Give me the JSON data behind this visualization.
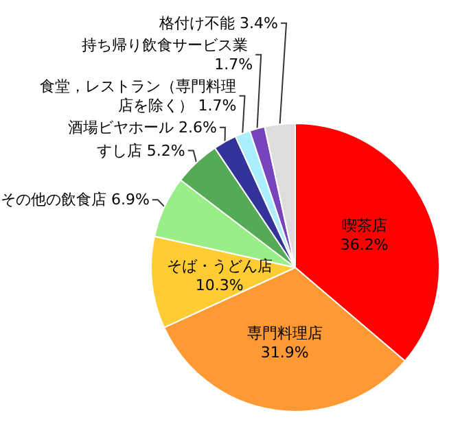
{
  "chart_data": {
    "type": "pie",
    "categories": [
      "喫茶店",
      "専門料理店",
      "そば・うどん店",
      "その他の飲食店",
      "すし店",
      "酒場ビヤホール",
      "食堂，レストラン（専門料理店を除く）",
      "持ち帰り飲食サービス業",
      "格付け不能"
    ],
    "values": [
      36.2,
      31.9,
      10.3,
      6.9,
      5.2,
      2.6,
      1.7,
      1.7,
      3.4
    ],
    "value_labels": [
      "36.2%",
      "31.9%",
      "10.3%",
      "6.9%",
      "5.2%",
      "2.6%",
      "1.7%",
      "1.7%",
      "3.4%"
    ],
    "colors": [
      "#ff0000",
      "#ff9933",
      "#ffcc33",
      "#99ee88",
      "#55aa55",
      "#333399",
      "#aaeeff",
      "#7744bb",
      "#dddddd"
    ]
  }
}
